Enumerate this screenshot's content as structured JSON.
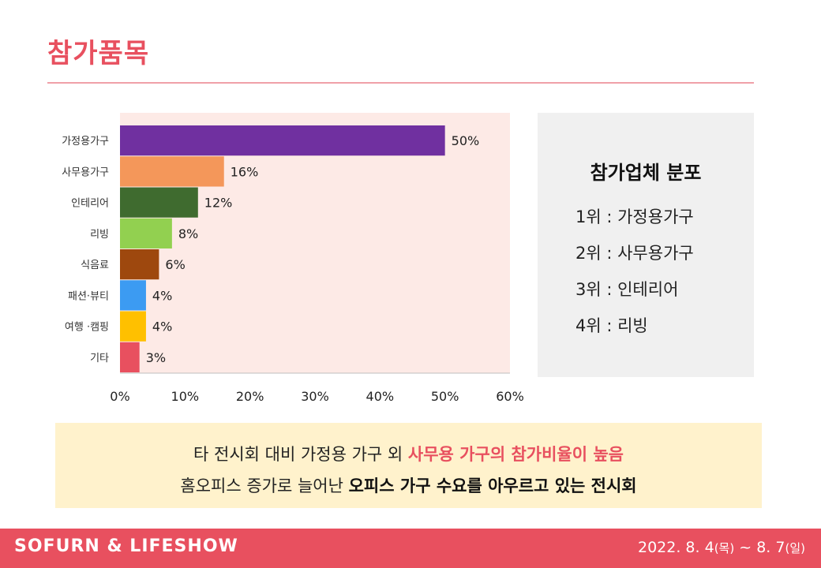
{
  "page": {
    "title": "참가품목"
  },
  "chart_data": {
    "type": "bar",
    "orientation": "horizontal",
    "categories": [
      "가정용가구",
      "사무용가구",
      "인테리어",
      "리빙",
      "식음료",
      "패션·뷰티",
      "여행 ·캠핑",
      "기타"
    ],
    "values": [
      50,
      16,
      12,
      8,
      6,
      4,
      4,
      3
    ],
    "value_labels": [
      "50%",
      "16%",
      "12%",
      "8%",
      "6%",
      "4%",
      "4%",
      "3%"
    ],
    "colors": [
      "#7030a0",
      "#f4975a",
      "#3f6b2f",
      "#92d050",
      "#9e480e",
      "#3c9bf2",
      "#ffc000",
      "#e8505f"
    ],
    "xlim": [
      0,
      60
    ],
    "x_ticks": [
      "0%",
      "10%",
      "20%",
      "30%",
      "40%",
      "50%",
      "60%"
    ],
    "grid": false,
    "plot_background": "#fdeae6"
  },
  "side_box": {
    "title": "참가업체 분포",
    "items": [
      "1위 : 가정용가구",
      "2위 : 사무용가구",
      "3위 : 인테리어",
      "4위 : 리빙"
    ]
  },
  "note": {
    "line1_plain": "타 전시회 대비 가정용 가구 외 ",
    "line1_highlight": "사무용 가구의 참가비율이 높음",
    "line2_plain": "홈오피스 증가로 늘어난 ",
    "line2_highlight": "오피스 가구 수요를 아우르고 있는 전시회"
  },
  "footer": {
    "brand": "SOFURN & LIFESHOW",
    "date_start": "2022. 8. 4",
    "date_start_day": "(목)",
    "separator": " ~ ",
    "date_end": "8. 7",
    "date_end_day": "(일)"
  },
  "colors": {
    "accent": "#e8505f",
    "note_background": "#fff2cc",
    "side_box_background": "#f0f0f0"
  }
}
